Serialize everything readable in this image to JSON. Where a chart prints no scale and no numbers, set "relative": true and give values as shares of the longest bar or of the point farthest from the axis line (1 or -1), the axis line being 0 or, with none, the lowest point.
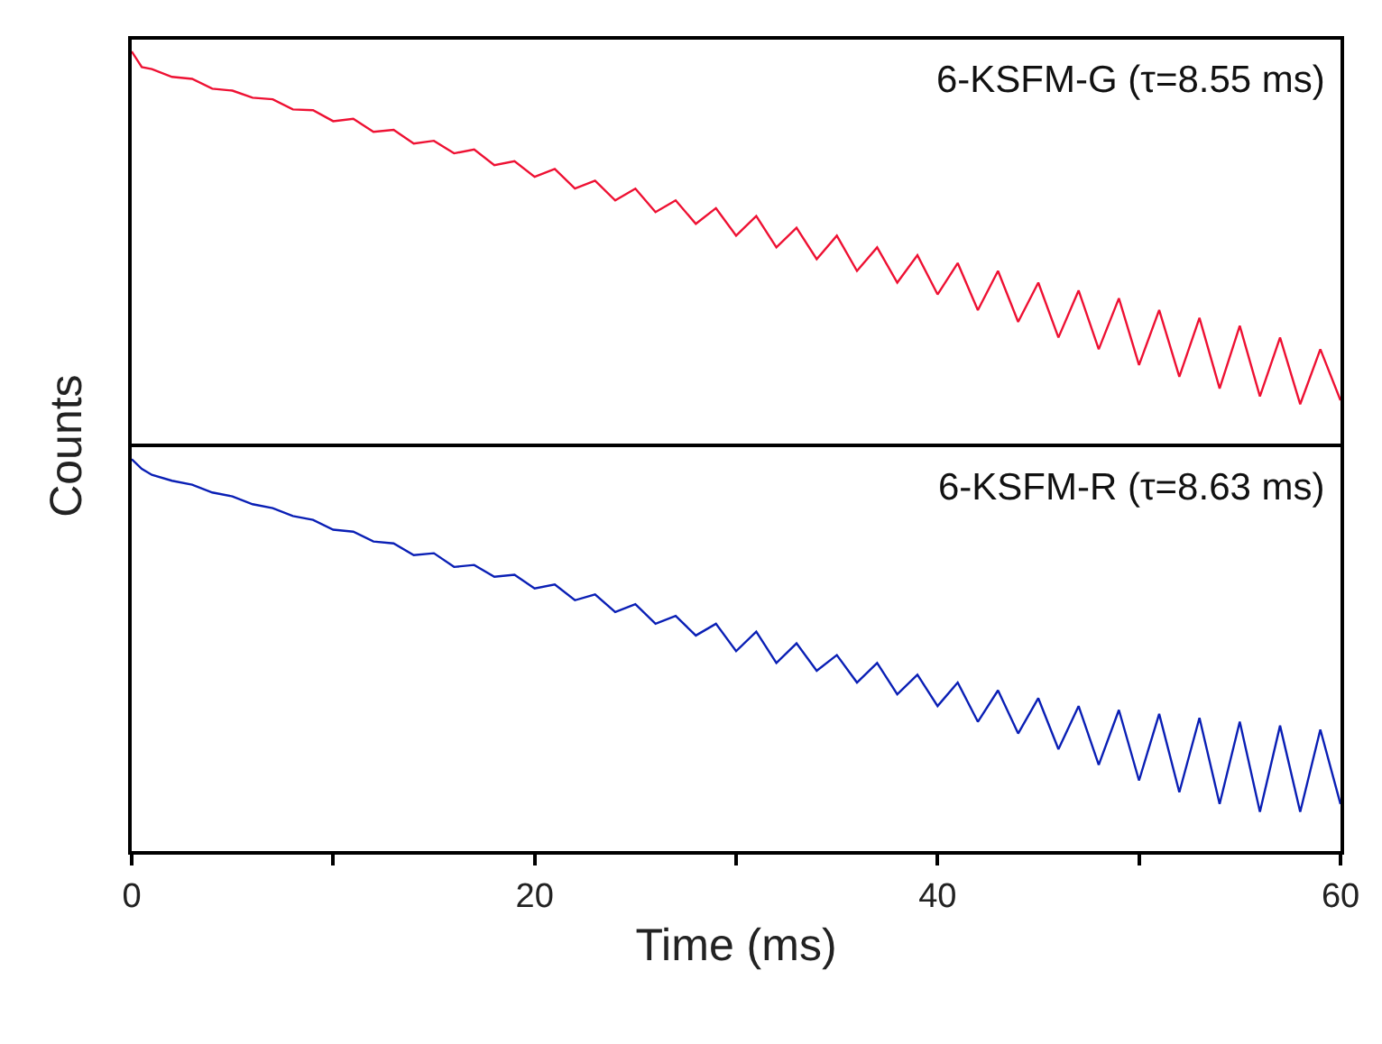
{
  "chart_data": [
    {
      "type": "line",
      "relative": true,
      "xlim": [
        0,
        60
      ],
      "tick_labels": false,
      "marker": "none",
      "line_style": "solid",
      "x": [
        0,
        0.5,
        1,
        2,
        3,
        4,
        5,
        6,
        7,
        8,
        9,
        10,
        11,
        12,
        13,
        14,
        15,
        16,
        17,
        18,
        19,
        20,
        21,
        22,
        23,
        24,
        25,
        26,
        27,
        28,
        29,
        30,
        31,
        32,
        33,
        34,
        35,
        36,
        37,
        38,
        39,
        40,
        41,
        42,
        43,
        44,
        45,
        46,
        47,
        48,
        49,
        50,
        51,
        52,
        53,
        54,
        55,
        56,
        57,
        58,
        59,
        60
      ],
      "series": [
        {
          "name": "6-KSFM-G (τ=8.55 ms)",
          "color": "#ee1133",
          "values": [
            1.0,
            0.96,
            0.955,
            0.935,
            0.93,
            0.905,
            0.9,
            0.882,
            0.878,
            0.852,
            0.85,
            0.822,
            0.828,
            0.795,
            0.8,
            0.765,
            0.772,
            0.74,
            0.75,
            0.71,
            0.72,
            0.68,
            0.7,
            0.65,
            0.67,
            0.62,
            0.65,
            0.59,
            0.62,
            0.56,
            0.6,
            0.53,
            0.58,
            0.5,
            0.55,
            0.47,
            0.53,
            0.44,
            0.5,
            0.41,
            0.48,
            0.38,
            0.46,
            0.34,
            0.44,
            0.31,
            0.41,
            0.27,
            0.39,
            0.24,
            0.37,
            0.2,
            0.34,
            0.17,
            0.32,
            0.14,
            0.3,
            0.12,
            0.27,
            0.1,
            0.24,
            0.11
          ]
        }
      ]
    },
    {
      "type": "line",
      "relative": true,
      "xlim": [
        0,
        60
      ],
      "xticks": [
        0,
        {
          "value": 10,
          "label": null
        },
        20,
        {
          "value": 30,
          "label": null
        },
        40,
        {
          "value": 50,
          "label": null
        },
        60
      ],
      "tick_labels": "x",
      "xlabel": "Time (ms)",
      "ylabel": "Counts",
      "marker": "none",
      "line_style": "solid",
      "x": [
        0,
        0.5,
        1,
        2,
        3,
        4,
        5,
        6,
        7,
        8,
        9,
        10,
        11,
        12,
        13,
        14,
        15,
        16,
        17,
        18,
        19,
        20,
        21,
        22,
        23,
        24,
        25,
        26,
        27,
        28,
        29,
        30,
        31,
        32,
        33,
        34,
        35,
        36,
        37,
        38,
        39,
        40,
        41,
        42,
        43,
        44,
        45,
        46,
        47,
        48,
        49,
        50,
        51,
        52,
        53,
        54,
        55,
        56,
        57,
        58,
        59,
        60
      ],
      "series": [
        {
          "name": "6-KSFM-R (τ=8.63 ms)",
          "color": "#0a1fb5",
          "values": [
            1.0,
            0.975,
            0.96,
            0.945,
            0.935,
            0.915,
            0.905,
            0.885,
            0.875,
            0.855,
            0.845,
            0.82,
            0.815,
            0.79,
            0.785,
            0.755,
            0.76,
            0.725,
            0.73,
            0.7,
            0.705,
            0.67,
            0.68,
            0.64,
            0.655,
            0.61,
            0.63,
            0.58,
            0.6,
            0.55,
            0.58,
            0.51,
            0.56,
            0.48,
            0.53,
            0.46,
            0.5,
            0.43,
            0.48,
            0.4,
            0.45,
            0.37,
            0.43,
            0.33,
            0.41,
            0.3,
            0.39,
            0.26,
            0.37,
            0.22,
            0.36,
            0.18,
            0.35,
            0.15,
            0.34,
            0.12,
            0.33,
            0.1,
            0.32,
            0.1,
            0.31,
            0.12
          ]
        }
      ]
    }
  ]
}
